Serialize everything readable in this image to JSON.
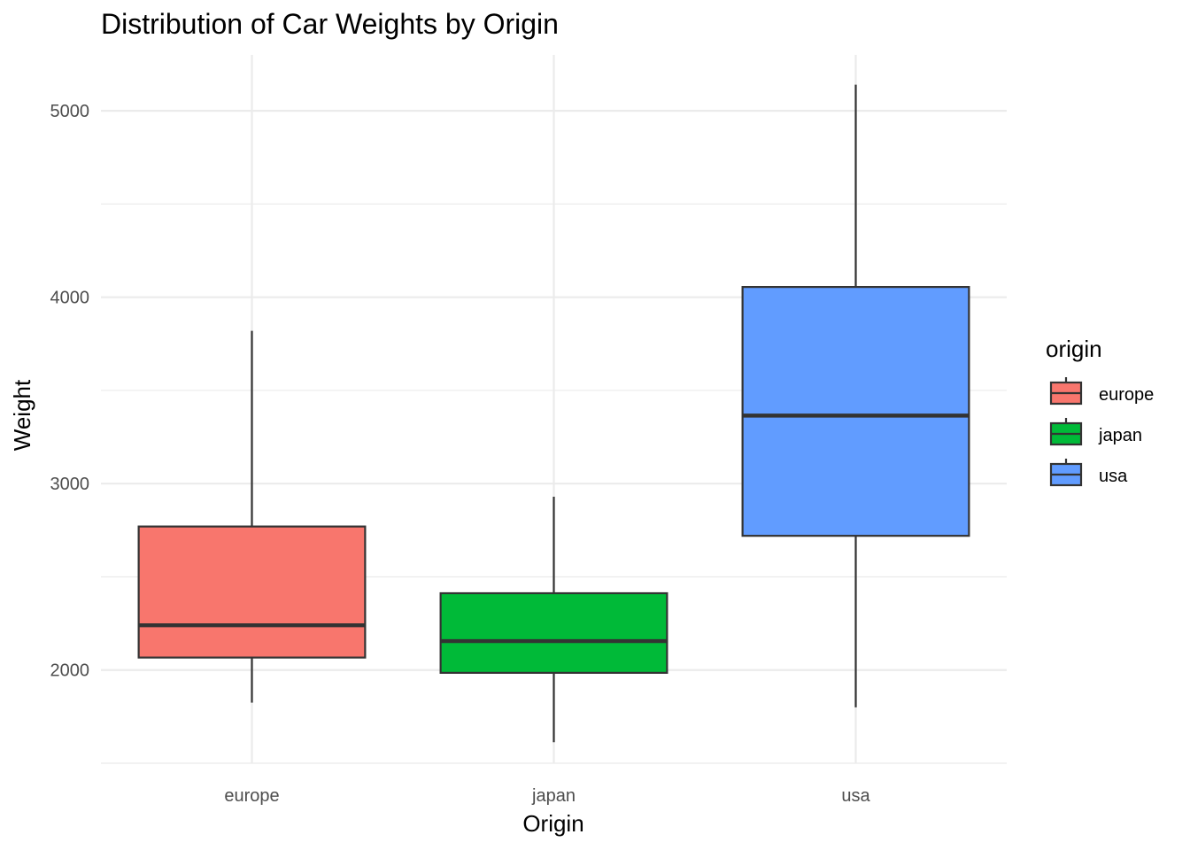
{
  "chart_data": {
    "type": "boxplot",
    "title": "Distribution of Car Weights by Origin",
    "xlabel": "Origin",
    "ylabel": "Weight",
    "categories": [
      "europe",
      "japan",
      "usa"
    ],
    "ylim": [
      1500,
      5300
    ],
    "yticks": [
      2000,
      3000,
      4000,
      5000
    ],
    "grid": true,
    "legend": {
      "title": "origin",
      "position": "right",
      "entries": [
        "europe",
        "japan",
        "usa"
      ]
    },
    "series": [
      {
        "name": "europe",
        "color": "#F8766D",
        "min": 1825,
        "q1": 2067,
        "median": 2240,
        "q3": 2770,
        "max": 3820
      },
      {
        "name": "japan",
        "color": "#00BA38",
        "min": 1613,
        "q1": 1985,
        "median": 2155,
        "q3": 2412,
        "max": 2930
      },
      {
        "name": "usa",
        "color": "#619CFF",
        "min": 1800,
        "q1": 2720,
        "median": 3365,
        "q3": 4055,
        "max": 5140
      }
    ]
  }
}
